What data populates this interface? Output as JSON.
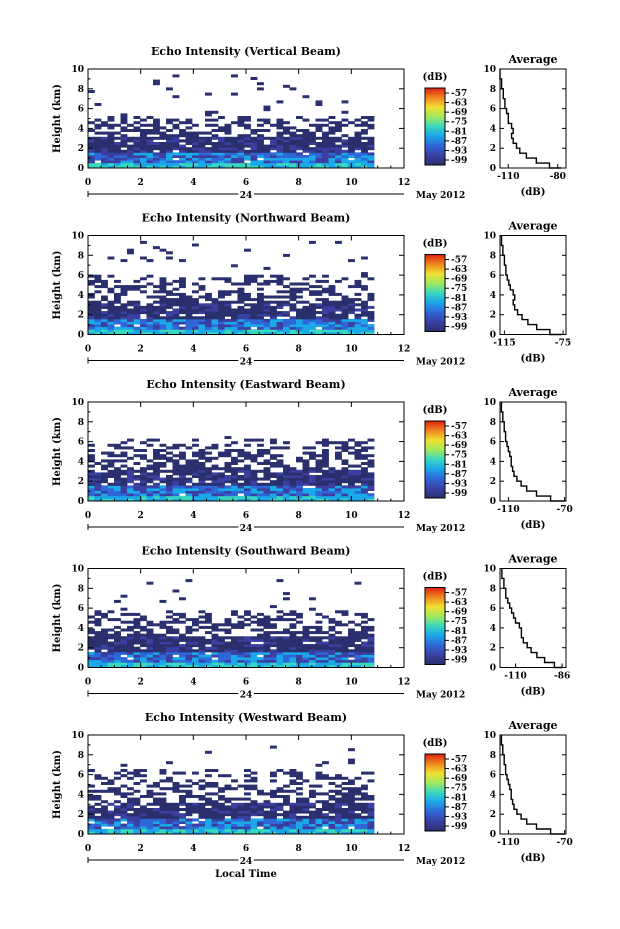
{
  "chart_data": [
    {
      "type": "heatmap",
      "title": "Echo Intensity (Vertical Beam)",
      "ylabel": "Height (km)",
      "xlim": [
        0,
        12
      ],
      "ylim": [
        0,
        10
      ],
      "xticks": [
        "0",
        "2",
        "4",
        "6",
        "8",
        "10",
        "12"
      ],
      "yticks": [
        "0",
        "2",
        "4",
        "6",
        "8",
        "10"
      ],
      "date_marker": "24",
      "date_label": "May 2012",
      "colorbar": {
        "unit": "(dB)",
        "ticks": [
          "-57",
          "-63",
          "-69",
          "-75",
          "-81",
          "-87",
          "-93",
          "-99"
        ]
      },
      "cloud_top_km": 5.5,
      "sparse_top_km": 9.7,
      "data_end_hour": 10.7,
      "average": {
        "title": "Average",
        "xlabel": "(dB)",
        "xticks": [
          "-110",
          "-80"
        ],
        "xlim": [
          -115,
          -75
        ],
        "yticks": [
          "0",
          "2",
          "4",
          "6",
          "8",
          "10"
        ],
        "profile": [
          [
            0,
            -78
          ],
          [
            0.5,
            -85
          ],
          [
            1,
            -93
          ],
          [
            1.5,
            -99
          ],
          [
            2,
            -103
          ],
          [
            2.5,
            -105
          ],
          [
            3,
            -107
          ],
          [
            3.5,
            -108
          ],
          [
            4,
            -107
          ],
          [
            4.5,
            -108
          ],
          [
            5,
            -110
          ],
          [
            5.5,
            -110
          ],
          [
            6,
            -111
          ],
          [
            6.5,
            -112
          ],
          [
            7,
            -112
          ],
          [
            7.5,
            -113
          ],
          [
            8,
            -113
          ],
          [
            8.5,
            -114
          ],
          [
            9,
            -114
          ],
          [
            9.5,
            -115
          ],
          [
            10,
            -115
          ]
        ]
      }
    },
    {
      "type": "heatmap",
      "title": "Echo Intensity (Northward Beam)",
      "ylabel": "Height (km)",
      "xlim": [
        0,
        12
      ],
      "ylim": [
        0,
        10
      ],
      "xticks": [
        "0",
        "2",
        "4",
        "6",
        "8",
        "10",
        "12"
      ],
      "yticks": [
        "0",
        "2",
        "4",
        "6",
        "8",
        "10"
      ],
      "date_marker": "24",
      "date_label": "May 2012",
      "colorbar": {
        "unit": "(dB)",
        "ticks": [
          "-57",
          "-63",
          "-69",
          "-75",
          "-81",
          "-87",
          "-93",
          "-99"
        ]
      },
      "cloud_top_km": 6.2,
      "sparse_top_km": 9.6,
      "data_end_hour": 10.7,
      "average": {
        "title": "Average",
        "xlabel": "(dB)",
        "xticks": [
          "-115",
          "-75"
        ],
        "xlim": [
          -118,
          -73
        ],
        "yticks": [
          "0",
          "2",
          "4",
          "6",
          "8",
          "10"
        ],
        "profile": [
          [
            0,
            -76
          ],
          [
            0.5,
            -84
          ],
          [
            1,
            -93
          ],
          [
            1.5,
            -99
          ],
          [
            2,
            -103
          ],
          [
            2.5,
            -106
          ],
          [
            3,
            -108
          ],
          [
            3.5,
            -109
          ],
          [
            4,
            -108
          ],
          [
            4.5,
            -109
          ],
          [
            5,
            -111
          ],
          [
            5.5,
            -112
          ],
          [
            6,
            -113
          ],
          [
            6.5,
            -114
          ],
          [
            7,
            -114
          ],
          [
            7.5,
            -115
          ],
          [
            8,
            -115
          ],
          [
            8.5,
            -116
          ],
          [
            9,
            -116
          ],
          [
            9.5,
            -117
          ],
          [
            10,
            -117
          ]
        ]
      }
    },
    {
      "type": "heatmap",
      "title": "Echo Intensity (Eastward Beam)",
      "ylabel": "Height (km)",
      "xlim": [
        0,
        12
      ],
      "ylim": [
        0,
        10
      ],
      "xticks": [
        "0",
        "2",
        "4",
        "6",
        "8",
        "10",
        "12"
      ],
      "yticks": [
        "0",
        "2",
        "4",
        "6",
        "8",
        "10"
      ],
      "date_marker": "24",
      "date_label": "May 2012",
      "colorbar": {
        "unit": "(dB)",
        "ticks": [
          "-57",
          "-63",
          "-69",
          "-75",
          "-81",
          "-87",
          "-93",
          "-99"
        ]
      },
      "cloud_top_km": 6.5,
      "sparse_top_km": 6.8,
      "data_end_hour": 10.7,
      "average": {
        "title": "Average",
        "xlabel": "(dB)",
        "xticks": [
          "-110",
          "-70"
        ],
        "xlim": [
          -116,
          -69
        ],
        "yticks": [
          "0",
          "2",
          "4",
          "6",
          "8",
          "10"
        ],
        "profile": [
          [
            0,
            -70
          ],
          [
            0.5,
            -80
          ],
          [
            1,
            -90
          ],
          [
            1.5,
            -97
          ],
          [
            2,
            -101
          ],
          [
            2.5,
            -104
          ],
          [
            3,
            -106
          ],
          [
            3.5,
            -107
          ],
          [
            4,
            -108
          ],
          [
            4.5,
            -108
          ],
          [
            5,
            -109
          ],
          [
            5.5,
            -110
          ],
          [
            6,
            -111
          ],
          [
            6.5,
            -112
          ],
          [
            7,
            -112
          ],
          [
            7.5,
            -113
          ],
          [
            8,
            -113
          ],
          [
            8.5,
            -114
          ],
          [
            9,
            -114
          ],
          [
            9.5,
            -115
          ],
          [
            10,
            -115
          ]
        ]
      }
    },
    {
      "type": "heatmap",
      "title": "Echo Intensity (Southward Beam)",
      "ylabel": "Height (km)",
      "xlim": [
        0,
        12
      ],
      "ylim": [
        0,
        10
      ],
      "xticks": [
        "0",
        "2",
        "4",
        "6",
        "8",
        "10",
        "12"
      ],
      "yticks": [
        "0",
        "2",
        "4",
        "6",
        "8",
        "10"
      ],
      "date_marker": "24",
      "date_label": "May 2012",
      "colorbar": {
        "unit": "(dB)",
        "ticks": [
          "-57",
          "-63",
          "-69",
          "-75",
          "-81",
          "-87",
          "-93",
          "-99"
        ]
      },
      "cloud_top_km": 6.0,
      "sparse_top_km": 9.0,
      "data_end_hour": 10.7,
      "average": {
        "title": "Average",
        "xlabel": "(dB)",
        "xticks": [
          "-110",
          "-86"
        ],
        "xlim": [
          -118,
          -84
        ],
        "yticks": [
          "0",
          "2",
          "4",
          "6",
          "8",
          "10"
        ],
        "profile": [
          [
            0,
            -86
          ],
          [
            0.5,
            -90
          ],
          [
            1,
            -95
          ],
          [
            1.5,
            -99
          ],
          [
            2,
            -102
          ],
          [
            2.5,
            -104
          ],
          [
            3,
            -106
          ],
          [
            3.5,
            -107
          ],
          [
            4,
            -107
          ],
          [
            4.5,
            -108
          ],
          [
            5,
            -110
          ],
          [
            5.5,
            -111
          ],
          [
            6,
            -112
          ],
          [
            6.5,
            -113
          ],
          [
            7,
            -114
          ],
          [
            7.5,
            -115
          ],
          [
            8,
            -115
          ],
          [
            8.5,
            -116
          ],
          [
            9,
            -116
          ],
          [
            9.5,
            -117
          ],
          [
            10,
            -117
          ]
        ]
      }
    },
    {
      "type": "heatmap",
      "title": "Echo Intensity (Westward Beam)",
      "ylabel": "Height (km)",
      "xlabel": "Local Time",
      "xlim": [
        0,
        12
      ],
      "ylim": [
        0,
        10
      ],
      "xticks": [
        "0",
        "2",
        "4",
        "6",
        "8",
        "10",
        "12"
      ],
      "yticks": [
        "0",
        "2",
        "4",
        "6",
        "8",
        "10"
      ],
      "date_marker": "24",
      "date_label": "May 2012",
      "colorbar": {
        "unit": "(dB)",
        "ticks": [
          "-57",
          "-63",
          "-69",
          "-75",
          "-81",
          "-87",
          "-93",
          "-99"
        ]
      },
      "cloud_top_km": 6.6,
      "sparse_top_km": 9.5,
      "data_end_hour": 10.7,
      "average": {
        "title": "Average",
        "xlabel": "(dB)",
        "xticks": [
          "-110",
          "-70"
        ],
        "xlim": [
          -116,
          -69
        ],
        "yticks": [
          "0",
          "2",
          "4",
          "6",
          "8",
          "10"
        ],
        "profile": [
          [
            0,
            -70
          ],
          [
            0.5,
            -80
          ],
          [
            1,
            -90
          ],
          [
            1.5,
            -97
          ],
          [
            2,
            -101
          ],
          [
            2.5,
            -104
          ],
          [
            3,
            -106
          ],
          [
            3.5,
            -107
          ],
          [
            4,
            -108
          ],
          [
            4.5,
            -108
          ],
          [
            5,
            -109
          ],
          [
            5.5,
            -110
          ],
          [
            6,
            -111
          ],
          [
            6.5,
            -112
          ],
          [
            7,
            -112
          ],
          [
            7.5,
            -113
          ],
          [
            8,
            -113
          ],
          [
            8.5,
            -114
          ],
          [
            9,
            -114
          ],
          [
            9.5,
            -115
          ],
          [
            10,
            -115
          ]
        ]
      }
    }
  ]
}
